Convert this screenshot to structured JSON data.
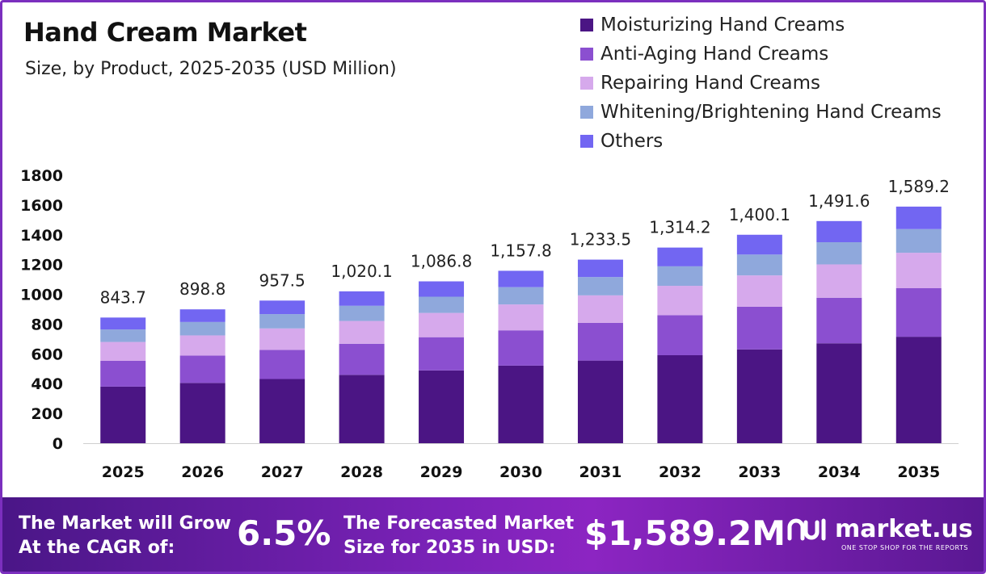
{
  "header": {
    "title": "Hand Cream Market",
    "subtitle": "Size, by Product, 2025-2035 (USD Million)"
  },
  "chart_data": {
    "type": "bar",
    "stacked": true,
    "categories": [
      "2025",
      "2026",
      "2027",
      "2028",
      "2029",
      "2030",
      "2031",
      "2032",
      "2033",
      "2034",
      "2035"
    ],
    "series": [
      {
        "name": "Moisturizing Hand Creams",
        "color": "#4b1584",
        "values": [
          380,
          405,
          431,
          459,
          489,
          521,
          555,
          591,
          630,
          671,
          715
        ]
      },
      {
        "name": "Anti-Aging Hand Creams",
        "color": "#8b4fd0",
        "values": [
          173,
          184,
          196,
          209,
          223,
          237,
          253,
          269,
          287,
          306,
          326
        ]
      },
      {
        "name": "Repairing Hand Creams",
        "color": "#d6a9ec",
        "values": [
          127,
          135,
          144,
          153,
          163,
          174,
          185,
          197,
          210,
          224,
          238
        ]
      },
      {
        "name": "Whitening/Brightening Hand Creams",
        "color": "#8fa8dc",
        "values": [
          84,
          90,
          96,
          102,
          109,
          116,
          123,
          131,
          140,
          149,
          159
        ]
      },
      {
        "name": "Others",
        "color": "#7266f2",
        "values": [
          80,
          85,
          91,
          97,
          103,
          110,
          117,
          126,
          133,
          142,
          151
        ]
      }
    ],
    "totals": [
      "843.7",
      "898.8",
      "957.5",
      "1,020.1",
      "1,086.8",
      "1,157.8",
      "1,233.5",
      "1,314.2",
      "1,400.1",
      "1,491.6",
      "1,589.2"
    ],
    "ylim": [
      0,
      1800
    ],
    "yticks": [
      "0",
      "200",
      "400",
      "600",
      "800",
      "1000",
      "1200",
      "1400",
      "1600",
      "1800"
    ],
    "xlabel": "",
    "ylabel": "",
    "legend_position": "top-right"
  },
  "banner": {
    "cagr_label_line1": "The Market will Grow",
    "cagr_label_line2": "At the CAGR of:",
    "cagr_value": "6.5%",
    "forecast_label_line1": "The Forecasted Market",
    "forecast_label_line2": "Size for 2035 in USD:",
    "forecast_value": "$1,589.2M",
    "brand_name": "market.us",
    "brand_tagline": "ONE STOP SHOP FOR THE REPORTS",
    "brand_logo_icon": "market-us-logo-icon"
  }
}
